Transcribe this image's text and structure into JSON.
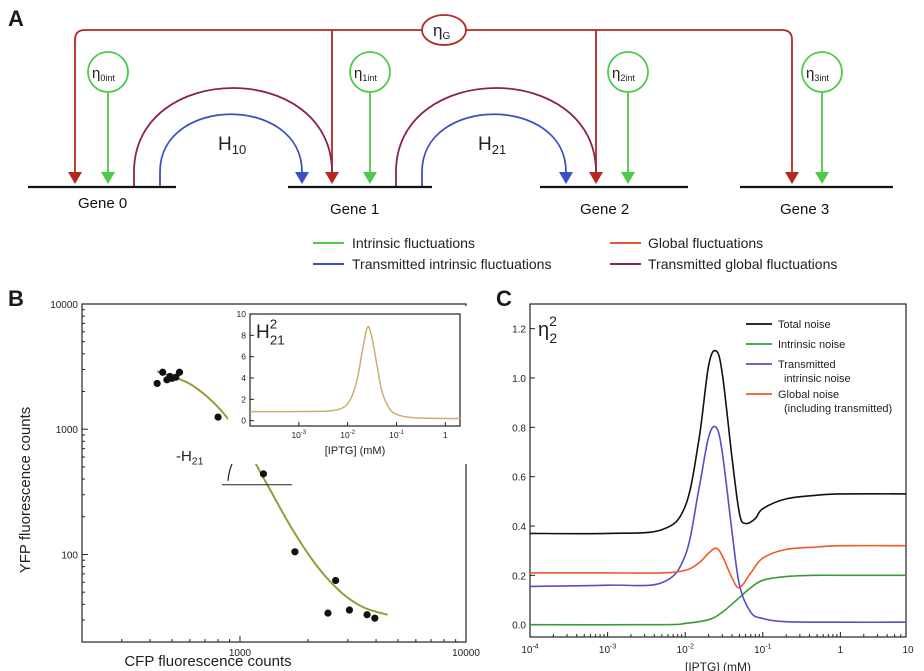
{
  "panel_a": {
    "letter": "A",
    "eta_g": "η",
    "eta_g_sub": "G",
    "eta_int": [
      {
        "base": "η",
        "sub": "0int"
      },
      {
        "base": "η",
        "sub": "1int"
      },
      {
        "base": "η",
        "sub": "2int"
      },
      {
        "base": "η",
        "sub": "3int"
      }
    ],
    "h10": {
      "base": "H",
      "sub": "10"
    },
    "h21": {
      "base": "H",
      "sub": "21"
    },
    "genes": [
      "Gene 0",
      "Gene 1",
      "Gene 2",
      "Gene 3"
    ],
    "legend": [
      {
        "label": "Intrinsic fluctuations",
        "color": "#4fc94a"
      },
      {
        "label": "Global fluctuations",
        "color": "#e2572b"
      },
      {
        "label": "Transmitted intrinsic fluctuations",
        "color": "#3b4fc4"
      },
      {
        "label": "Transmitted global fluctuations",
        "color": "#8b1f57"
      }
    ],
    "colors": {
      "global": "#b3281e",
      "intrinsic": "#4fc94a",
      "transmitted_intrinsic": "#3b4fc4",
      "transmitted_global": "#8b1f57"
    }
  },
  "panel_b": {
    "letter": "B",
    "xlabel": "CFP fluorescence counts",
    "ylabel": "YFP fluorescence counts",
    "slope_label": {
      "base": "-H",
      "sub": "21"
    }
  },
  "panel_b_inset": {
    "title": {
      "base": "H",
      "sub": "21",
      "sup": "2"
    },
    "xlabel": "[IPTG] (mM)"
  },
  "panel_c": {
    "letter": "C",
    "title": {
      "base": "η",
      "sub": "2",
      "sup": "2"
    },
    "xlabel": "[IPTG] (mM)",
    "legend": [
      {
        "label": "Total noise",
        "color": "#111111"
      },
      {
        "label": "Intrinsic noise",
        "color": "#3a9a3a"
      },
      {
        "label": "Transmitted",
        "label2": "intrinsic noise",
        "color": "#5050c8"
      },
      {
        "label": "Global noise",
        "label2": "(including transmitted)",
        "color": "#f05a28"
      }
    ]
  },
  "chart_data": [
    {
      "type": "scatter",
      "panel": "B",
      "xlabel": "CFP fluorescence counts",
      "ylabel": "YFP fluorescence counts",
      "xscale": "log",
      "yscale": "log",
      "xlim": [
        200,
        10000
      ],
      "ylim": [
        20,
        10000
      ],
      "xticks": [
        1000,
        10000
      ],
      "xtick_labels": [
        "1000",
        "10000"
      ],
      "yticks": [
        100,
        1000,
        10000
      ],
      "ytick_labels": [
        "100",
        "1000",
        "10000"
      ],
      "points": [
        [
          430,
          2320
        ],
        [
          455,
          2850
        ],
        [
          475,
          2480
        ],
        [
          490,
          2640
        ],
        [
          500,
          2550
        ],
        [
          520,
          2600
        ],
        [
          540,
          2850
        ],
        [
          800,
          1250
        ],
        [
          1270,
          440
        ],
        [
          1750,
          105
        ],
        [
          2450,
          34
        ],
        [
          2650,
          62
        ],
        [
          3050,
          36
        ],
        [
          3650,
          33
        ],
        [
          3950,
          31
        ]
      ],
      "fit_line": {
        "x": [
          430,
          600,
          800,
          1000,
          1300,
          1700,
          2200,
          2800,
          3500,
          4500
        ],
        "y": [
          2900,
          2300,
          1500,
          880,
          380,
          160,
          80,
          50,
          38,
          33
        ],
        "color": "#9a9a3a"
      }
    },
    {
      "type": "line",
      "panel": "B inset",
      "xlabel": "[IPTG] (mM)",
      "xscale": "log",
      "xlim": [
        0.0001,
        2
      ],
      "ylim": [
        -0.5,
        10
      ],
      "xticks": [
        0.001,
        0.01,
        0.1,
        1
      ],
      "xtick_labels": [
        "10-3",
        "10-2",
        "10-1",
        "1"
      ],
      "yticks": [
        0,
        2,
        4,
        6,
        8,
        10
      ],
      "ytick_labels": [
        "0",
        "2",
        "4",
        "6",
        "8",
        "10"
      ],
      "series": [
        {
          "x": [
            0.0001,
            0.001,
            0.005,
            0.01,
            0.015,
            0.02,
            0.025,
            0.03,
            0.04,
            0.05,
            0.07,
            0.1,
            0.2,
            1,
            2
          ],
          "y": [
            0.85,
            0.86,
            0.95,
            1.6,
            3.5,
            6.5,
            8.7,
            8.2,
            5.2,
            2.8,
            1.2,
            0.6,
            0.3,
            0.2,
            0.2
          ],
          "color": "#c8b070"
        }
      ]
    },
    {
      "type": "line",
      "panel": "C",
      "title": "η22",
      "xlabel": "[IPTG] (mM)",
      "xscale": "log",
      "xlim": [
        0.0001,
        7
      ],
      "ylim": [
        -0.05,
        1.3
      ],
      "xticks": [
        0.0001,
        0.001,
        0.01,
        0.1,
        1,
        10
      ],
      "xtick_labels": [
        "10-4",
        "10-3",
        "10-2",
        "10-1",
        "1",
        "10"
      ],
      "yticks": [
        0.0,
        0.2,
        0.4,
        0.6,
        0.8,
        1.0,
        1.2
      ],
      "ytick_labels": [
        "0.0",
        "0.2",
        "0.4",
        "0.6",
        "0.8",
        "1.0",
        "1.2"
      ],
      "series": [
        {
          "name": "Total noise",
          "color": "#111111",
          "x": [
            0.0001,
            0.001,
            0.005,
            0.01,
            0.015,
            0.02,
            0.025,
            0.03,
            0.04,
            0.05,
            0.06,
            0.08,
            0.1,
            0.2,
            0.5,
            1,
            7
          ],
          "y": [
            0.37,
            0.37,
            0.385,
            0.48,
            0.75,
            1.05,
            1.11,
            1.02,
            0.68,
            0.45,
            0.41,
            0.43,
            0.47,
            0.51,
            0.525,
            0.53,
            0.53
          ]
        },
        {
          "name": "Intrinsic noise",
          "color": "#3a9a3a",
          "x": [
            0.0001,
            0.005,
            0.01,
            0.02,
            0.03,
            0.05,
            0.07,
            0.1,
            0.2,
            0.5,
            1,
            7
          ],
          "y": [
            0.0,
            0.0,
            0.005,
            0.02,
            0.05,
            0.11,
            0.15,
            0.18,
            0.195,
            0.2,
            0.2,
            0.2
          ]
        },
        {
          "name": "Transmitted intrinsic noise",
          "color": "#5050c8",
          "x": [
            0.0001,
            0.001,
            0.005,
            0.01,
            0.015,
            0.02,
            0.025,
            0.03,
            0.04,
            0.05,
            0.07,
            0.1,
            0.2,
            1,
            7
          ],
          "y": [
            0.155,
            0.16,
            0.17,
            0.28,
            0.55,
            0.76,
            0.8,
            0.7,
            0.38,
            0.16,
            0.05,
            0.025,
            0.012,
            0.01,
            0.01
          ]
        },
        {
          "name": "Global noise (including transmitted)",
          "color": "#f05a28",
          "x": [
            0.0001,
            0.001,
            0.005,
            0.01,
            0.015,
            0.02,
            0.025,
            0.03,
            0.04,
            0.05,
            0.07,
            0.1,
            0.2,
            0.5,
            1,
            7
          ],
          "y": [
            0.21,
            0.21,
            0.21,
            0.22,
            0.25,
            0.29,
            0.31,
            0.28,
            0.19,
            0.15,
            0.21,
            0.27,
            0.305,
            0.315,
            0.32,
            0.32
          ]
        }
      ]
    }
  ]
}
